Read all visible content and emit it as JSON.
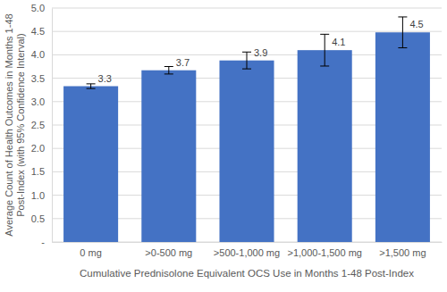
{
  "chart_data": {
    "type": "bar",
    "x_label": "Cumulative Prednisolone Equivalent OCS Use in Months 1-48 Post-Index",
    "y_label": "Average Count of Health Outcomes in Months 1-48 Post-Index (with 95% Confidence Interval)",
    "categories": [
      "0 mg",
      ">0-500 mg",
      ">500-1,000 mg",
      ">1,000-1,500 mg",
      ">1,500 mg"
    ],
    "values": [
      3.33,
      3.67,
      3.88,
      4.1,
      4.48
    ],
    "value_labels": [
      "3.3",
      "3.7",
      "3.9",
      "4.1",
      "4.5"
    ],
    "errors": [
      0.05,
      0.08,
      0.18,
      0.34,
      0.33
    ],
    "color": "#4472c4",
    "ylim": [
      0,
      5
    ],
    "yticks": [
      {
        "value": 0,
        "label": "-"
      },
      0.5,
      {
        "value": 1,
        "label": "1.0"
      },
      1.5,
      {
        "value": 2,
        "label": "2.0"
      },
      2.5,
      {
        "value": 3,
        "label": "3.0"
      },
      3.5,
      {
        "value": 4,
        "label": "4.0"
      },
      4.5,
      {
        "value": 5,
        "label": "5.0"
      }
    ],
    "grid": true,
    "data_labels": true
  }
}
